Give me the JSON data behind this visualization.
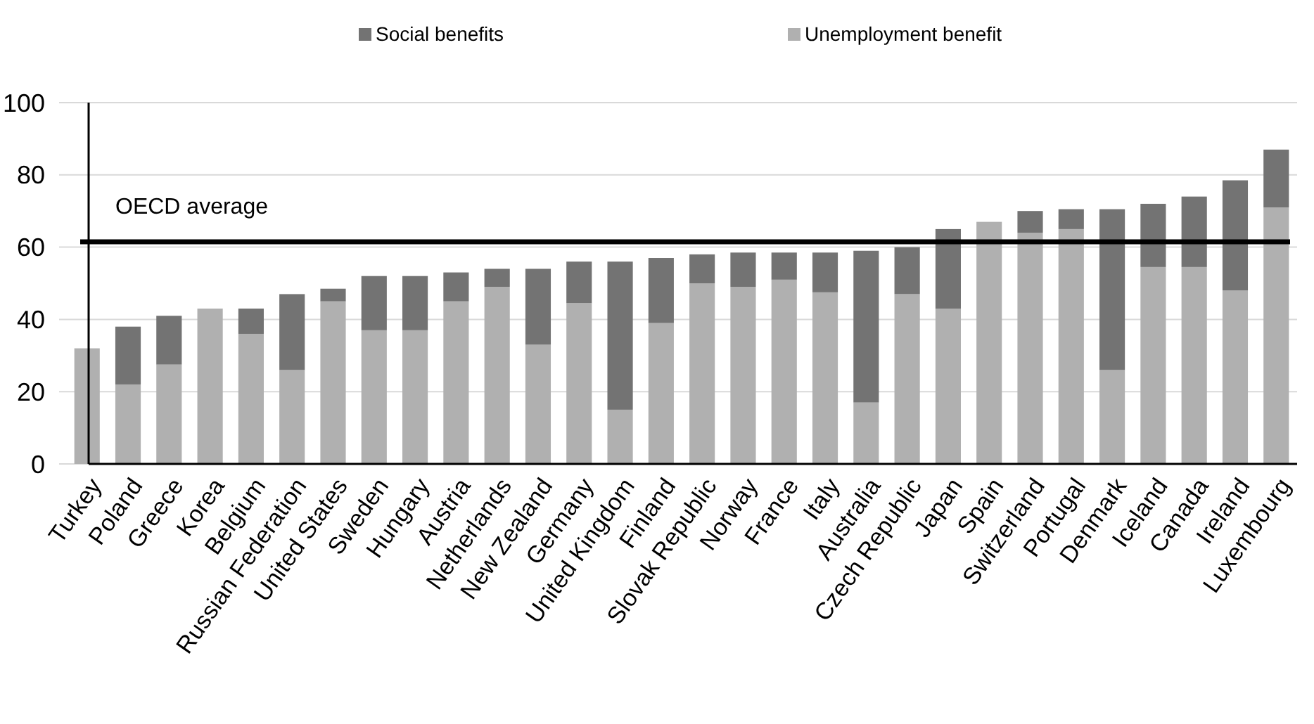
{
  "chart_data": {
    "type": "bar",
    "stacked": true,
    "categories": [
      "Turkey",
      "Poland",
      "Greece",
      "Korea",
      "Belgium",
      "Russian Federation",
      "United States",
      "Sweden",
      "Hungary",
      "Austria",
      "Netherlands",
      "New Zealand",
      "Germany",
      "United Kingdom",
      "Finland",
      "Slovak Republic",
      "Norway",
      "France",
      "Italy",
      "Australia",
      "Czech Republic",
      "Japan",
      "Spain",
      "Switzerland",
      "Portugal",
      "Denmark",
      "Iceland",
      "Canada",
      "Ireland",
      "Luxembourg"
    ],
    "series": [
      {
        "name": "Unemployment benefit",
        "color": "#b0b0b0",
        "values": [
          32,
          22,
          27.5,
          43,
          36,
          26,
          45,
          37,
          37,
          45,
          49,
          33,
          44.5,
          15,
          39,
          50,
          49,
          51,
          47.5,
          17,
          47,
          43,
          67,
          64,
          65,
          26,
          54.5,
          54.5,
          48,
          71
        ]
      },
      {
        "name": "Social benefits",
        "color": "#737373",
        "values": [
          0,
          16,
          13.5,
          0,
          7,
          21,
          3.5,
          15,
          15,
          8,
          5,
          21,
          11.5,
          41,
          18,
          8,
          9.5,
          7.5,
          11,
          42,
          13,
          22,
          0,
          6,
          5.5,
          44.5,
          17.5,
          19.5,
          30.5,
          16
        ]
      }
    ],
    "ylim": [
      0,
      100
    ],
    "yticks": [
      0,
      20,
      40,
      60,
      80,
      100
    ],
    "grid": "y",
    "legend": "top",
    "ref_lines": [
      {
        "axis": "y",
        "value": 61.5,
        "label": "OECD average",
        "color": "#000000"
      }
    ]
  }
}
